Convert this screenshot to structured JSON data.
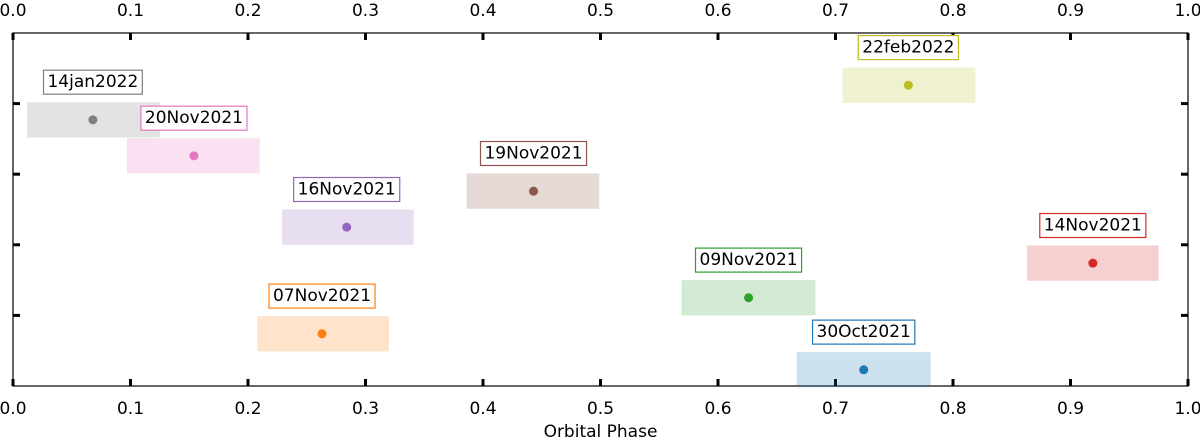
{
  "chart_data": {
    "type": "phase-ranges",
    "x_label": "Orbital Phase",
    "xlim": [
      0,
      1
    ],
    "ylim": [
      0,
      5
    ],
    "xticks": [
      {
        "value": 0,
        "label": "0.0"
      },
      0.1,
      0.2,
      0.3,
      0.4,
      0.5,
      0.6,
      0.7,
      0.8,
      0.9,
      {
        "value": 1,
        "label": "1.0"
      }
    ],
    "yticks": [
      1,
      2,
      3,
      4
    ],
    "series": [
      {
        "name": "14jan2022",
        "color": "#7f7f7f",
        "x": [
          0.068
        ],
        "values": [
          3.77
        ],
        "range": [
          0.012,
          0.125
        ]
      },
      {
        "name": "20Nov2021",
        "color": "#e377c2",
        "x": [
          0.154
        ],
        "values": [
          3.26
        ],
        "range": [
          0.097,
          0.21
        ]
      },
      {
        "name": "16Nov2021",
        "color": "#9467bd",
        "x": [
          0.284
        ],
        "values": [
          2.25
        ],
        "range": [
          0.229,
          0.341
        ]
      },
      {
        "name": "19Nov2021",
        "color": "#8c564b",
        "x": [
          0.443
        ],
        "values": [
          2.76
        ],
        "range": [
          0.386,
          0.499
        ]
      },
      {
        "name": "07Nov2021",
        "color": "#ff7f0e",
        "x": [
          0.263
        ],
        "values": [
          0.74
        ],
        "range": [
          0.208,
          0.32
        ]
      },
      {
        "name": "09Nov2021",
        "color": "#2ca02c",
        "x": [
          0.626
        ],
        "values": [
          1.25
        ],
        "range": [
          0.569,
          0.683
        ]
      },
      {
        "name": "30Oct2021",
        "color": "#1f77b4",
        "x": [
          0.724
        ],
        "values": [
          0.23
        ],
        "range": [
          0.667,
          0.781
        ]
      },
      {
        "name": "14Nov2021",
        "color": "#d62728",
        "x": [
          0.919
        ],
        "values": [
          1.74
        ],
        "range": [
          0.863,
          0.975
        ]
      },
      {
        "name": "22feb2022",
        "color": "#bcbd22",
        "x": [
          0.762
        ],
        "values": [
          4.26
        ],
        "range": [
          0.706,
          0.819
        ]
      }
    ]
  }
}
